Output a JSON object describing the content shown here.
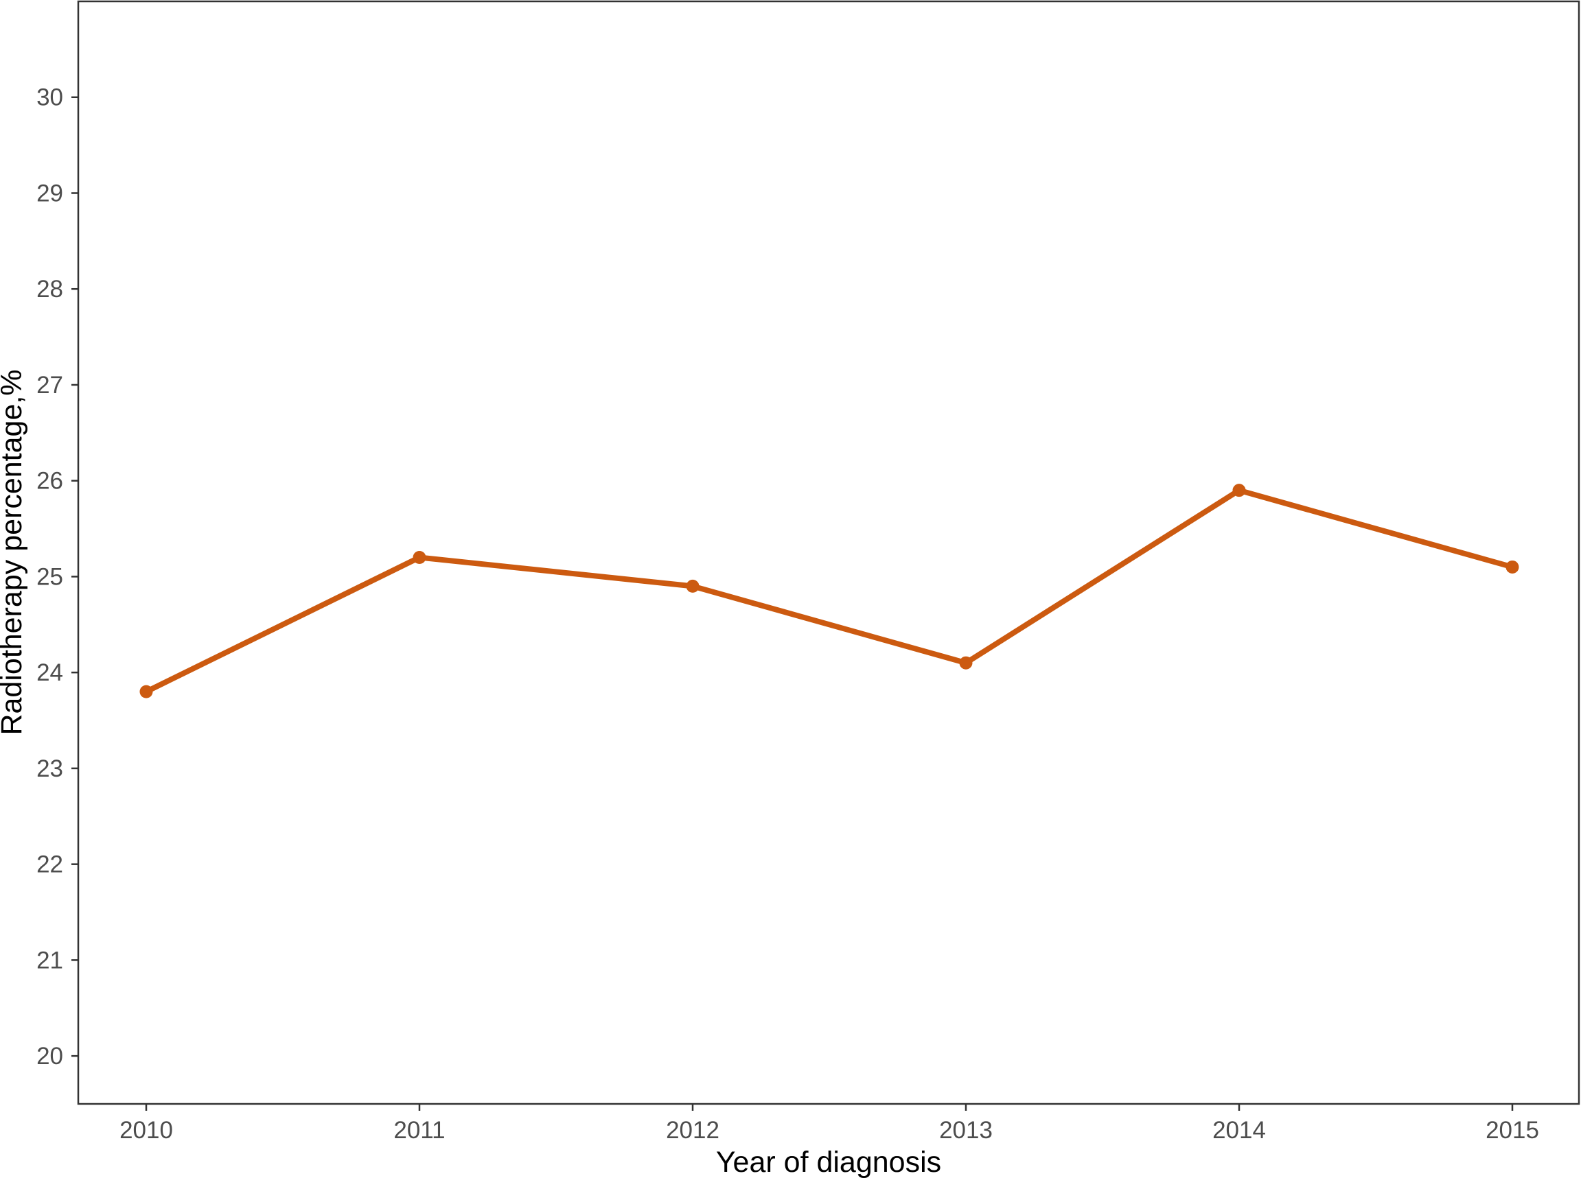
{
  "chart_data": {
    "type": "line",
    "title": "",
    "xlabel": "Year of diagnosis",
    "ylabel": "Radiotherapy percentage,%",
    "x": [
      "2010",
      "2011",
      "2012",
      "2013",
      "2014",
      "2015"
    ],
    "y_ticks": [
      "20",
      "21",
      "22",
      "23",
      "24",
      "25",
      "26",
      "27",
      "28",
      "29",
      "30"
    ],
    "ylim": [
      19.5,
      31
    ],
    "grid": false,
    "legend": "none",
    "series": [
      {
        "values": [
          23.8,
          25.2,
          24.9,
          24.1,
          25.9,
          25.1
        ],
        "color": "#cc5a10"
      }
    ]
  }
}
